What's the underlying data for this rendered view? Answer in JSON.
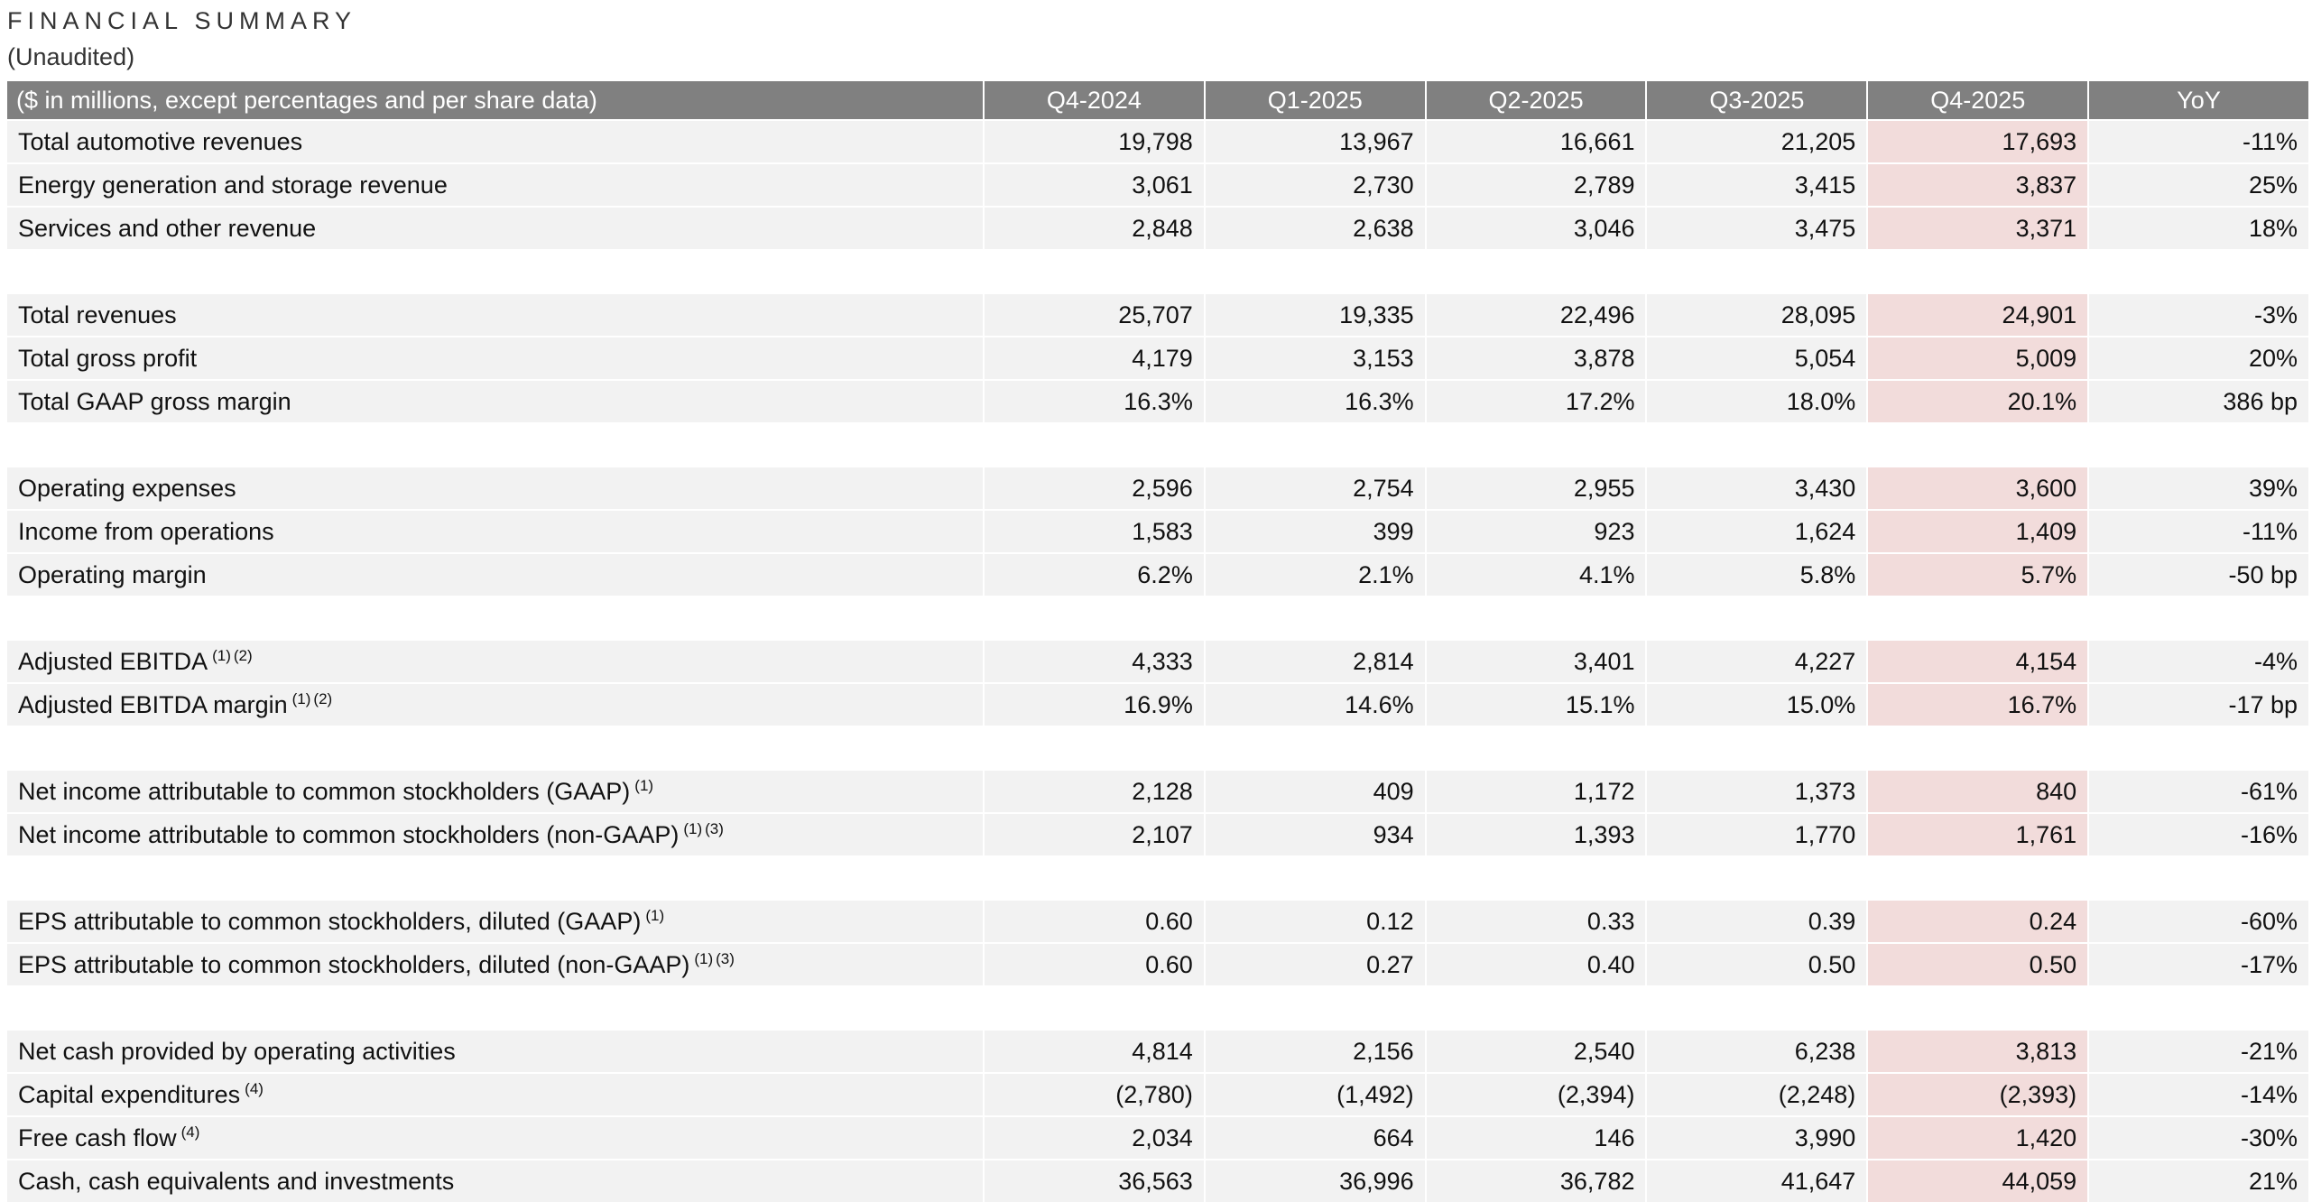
{
  "header": {
    "title": "FINANCIAL SUMMARY",
    "subtitle": "(Unaudited)"
  },
  "table": {
    "columns": [
      "($ in millions, except percentages and per share data)",
      "Q4-2024",
      "Q1-2025",
      "Q2-2025",
      "Q3-2025",
      "Q4-2025",
      "YoY"
    ],
    "groups": [
      {
        "rows": [
          {
            "label": "Total automotive revenues",
            "values": [
              "19,798",
              "13,967",
              "16,661",
              "21,205",
              "17,693",
              "-11%"
            ]
          },
          {
            "label": "Energy generation and storage revenue",
            "values": [
              "3,061",
              "2,730",
              "2,789",
              "3,415",
              "3,837",
              "25%"
            ]
          },
          {
            "label": "Services and other revenue",
            "values": [
              "2,848",
              "2,638",
              "3,046",
              "3,475",
              "3,371",
              "18%"
            ]
          }
        ]
      },
      {
        "rows": [
          {
            "label": "Total revenues",
            "values": [
              "25,707",
              "19,335",
              "22,496",
              "28,095",
              "24,901",
              "-3%"
            ]
          },
          {
            "label": "Total gross profit",
            "values": [
              "4,179",
              "3,153",
              "3,878",
              "5,054",
              "5,009",
              "20%"
            ]
          },
          {
            "label": "Total GAAP gross margin",
            "values": [
              "16.3%",
              "16.3%",
              "17.2%",
              "18.0%",
              "20.1%",
              "386 bp"
            ]
          }
        ]
      },
      {
        "rows": [
          {
            "label": "Operating expenses",
            "values": [
              "2,596",
              "2,754",
              "2,955",
              "3,430",
              "3,600",
              "39%"
            ]
          },
          {
            "label": "Income from operations",
            "values": [
              "1,583",
              "399",
              "923",
              "1,624",
              "1,409",
              "-11%"
            ]
          },
          {
            "label": "Operating margin",
            "values": [
              "6.2%",
              "2.1%",
              "4.1%",
              "5.8%",
              "5.7%",
              "-50 bp"
            ]
          }
        ]
      },
      {
        "rows": [
          {
            "label": "Adjusted EBITDA",
            "notes": [
              "(1)",
              "(2)"
            ],
            "values": [
              "4,333",
              "2,814",
              "3,401",
              "4,227",
              "4,154",
              "-4%"
            ]
          },
          {
            "label": "Adjusted EBITDA margin",
            "notes": [
              "(1)",
              "(2)"
            ],
            "values": [
              "16.9%",
              "14.6%",
              "15.1%",
              "15.0%",
              "16.7%",
              "-17 bp"
            ]
          }
        ]
      },
      {
        "rows": [
          {
            "label": "Net income attributable to common stockholders (GAAP)",
            "notes": [
              "(1)"
            ],
            "values": [
              "2,128",
              "409",
              "1,172",
              "1,373",
              "840",
              "-61%"
            ]
          },
          {
            "label": "Net income attributable to common stockholders (non-GAAP)",
            "notes": [
              "(1)",
              "(3)"
            ],
            "values": [
              "2,107",
              "934",
              "1,393",
              "1,770",
              "1,761",
              "-16%"
            ]
          }
        ]
      },
      {
        "rows": [
          {
            "label": "EPS attributable to common stockholders, diluted (GAAP)",
            "notes": [
              "(1)"
            ],
            "values": [
              "0.60",
              "0.12",
              "0.33",
              "0.39",
              "0.24",
              "-60%"
            ]
          },
          {
            "label": "EPS attributable to common stockholders, diluted (non-GAAP)",
            "notes": [
              "(1)",
              "(3)"
            ],
            "values": [
              "0.60",
              "0.27",
              "0.40",
              "0.50",
              "0.50",
              "-17%"
            ]
          }
        ]
      },
      {
        "rows": [
          {
            "label": "Net cash provided by operating activities",
            "values": [
              "4,814",
              "2,156",
              "2,540",
              "6,238",
              "3,813",
              "-21%"
            ]
          },
          {
            "label": "Capital expenditures",
            "notes": [
              "(4)"
            ],
            "values": [
              "(2,780)",
              "(1,492)",
              "(2,394)",
              "(2,248)",
              "(2,393)",
              "-14%"
            ]
          },
          {
            "label": "Free cash flow",
            "notes": [
              "(4)"
            ],
            "values": [
              "2,034",
              "664",
              "146",
              "3,990",
              "1,420",
              "-30%"
            ]
          },
          {
            "label": "Cash, cash equivalents and investments",
            "values": [
              "36,563",
              "36,996",
              "36,782",
              "41,647",
              "44,059",
              "21%"
            ]
          }
        ]
      }
    ]
  }
}
